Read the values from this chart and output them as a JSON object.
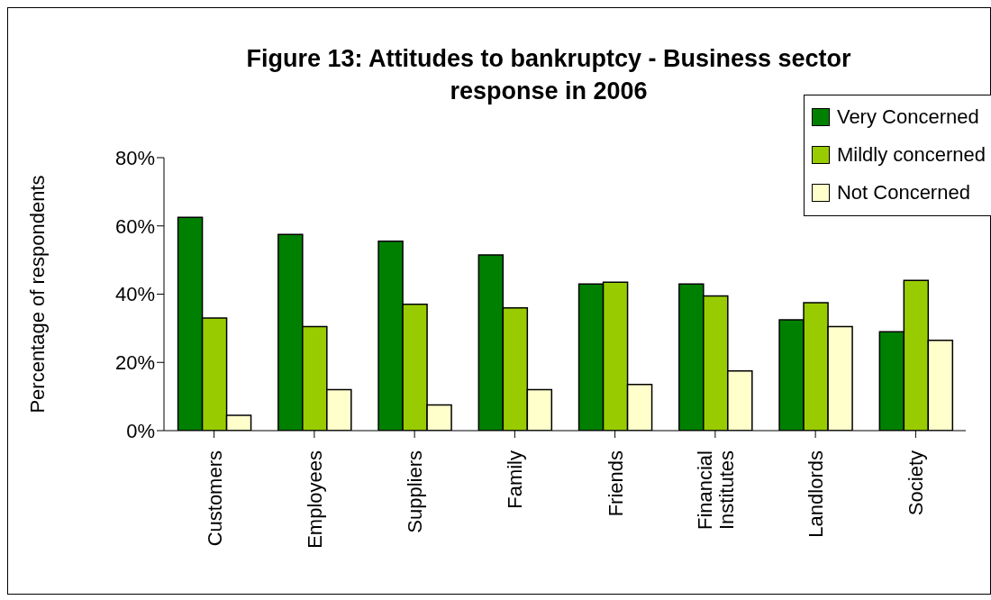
{
  "chart_data": {
    "type": "bar",
    "title": "Figure 13: Attitudes to bankruptcy - Business sector response in 2006",
    "ylabel": "Percentage of respondents",
    "categories": [
      "Customers",
      "Employees",
      "Suppliers",
      "Family",
      "Friends",
      "Financial Institutes",
      "Landlords",
      "Society"
    ],
    "series": [
      {
        "name": "Very Concerned",
        "color": "#008000",
        "values": [
          62.5,
          57.5,
          55.5,
          51.5,
          43,
          43,
          32.5,
          29
        ]
      },
      {
        "name": "Mildly concerned",
        "color": "#99cc00",
        "values": [
          33,
          30.5,
          37,
          36,
          43.5,
          39.5,
          37.5,
          44
        ]
      },
      {
        "name": "Not Concerned",
        "color": "#ffffcc",
        "values": [
          4.5,
          12,
          7.5,
          12,
          13.5,
          17.5,
          30.5,
          26.5
        ]
      }
    ],
    "ylim": [
      0,
      80
    ],
    "yticks": [
      {
        "value": 0,
        "label": "0%"
      },
      {
        "value": 20,
        "label": "20%"
      },
      {
        "value": 40,
        "label": "40%"
      },
      {
        "value": 60,
        "label": "60%"
      },
      {
        "value": 80,
        "label": "80%"
      }
    ],
    "grid": false,
    "legend": "top right"
  }
}
